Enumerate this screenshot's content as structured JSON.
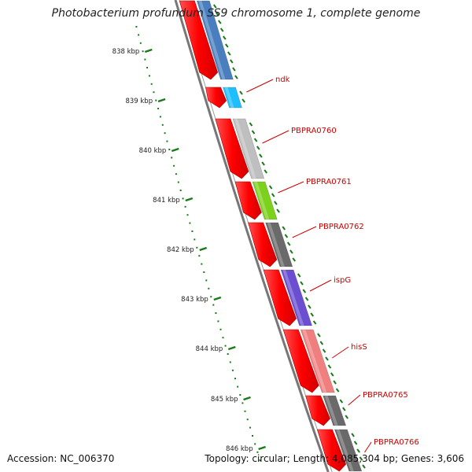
{
  "title": "Photobacterium profundum SS9 chromosome 1, complete genome",
  "footer": {
    "accession": "Accession: NC_006370",
    "topology": "Topology: circular; Length: 4,085,304 bp; Genes: 3,606"
  },
  "colors": {
    "forward_strand": "#ff0000",
    "backbone": "#777777",
    "tick": "#1a7a1a",
    "label": "#cc0000",
    "background": "#ffffff"
  },
  "scale": {
    "unit": "kbp",
    "ticks": [
      {
        "label": "838 kbp"
      },
      {
        "label": "839 kbp"
      },
      {
        "label": "840 kbp"
      },
      {
        "label": "841 kbp"
      },
      {
        "label": "842 kbp"
      },
      {
        "label": "843 kbp"
      },
      {
        "label": "844 kbp"
      },
      {
        "label": "845 kbp"
      },
      {
        "label": "846 kbp"
      }
    ]
  },
  "genes": [
    {
      "name": "",
      "color": "#4a7fbf"
    },
    {
      "name": "ndk",
      "color": "#1fbfff"
    },
    {
      "name": "PBPRA0760",
      "color": "#bfbfbf"
    },
    {
      "name": "PBPRA0761",
      "color": "#7cd11c"
    },
    {
      "name": "PBPRA0762",
      "color": "#6a6a6a"
    },
    {
      "name": "ispG",
      "color": "#6a4fd1"
    },
    {
      "name": "hisS",
      "color": "#f08080"
    },
    {
      "name": "PBPRA0765",
      "color": "#6a6a6a"
    },
    {
      "name": "PBPRA0766",
      "color": "#6a6a6a"
    }
  ]
}
